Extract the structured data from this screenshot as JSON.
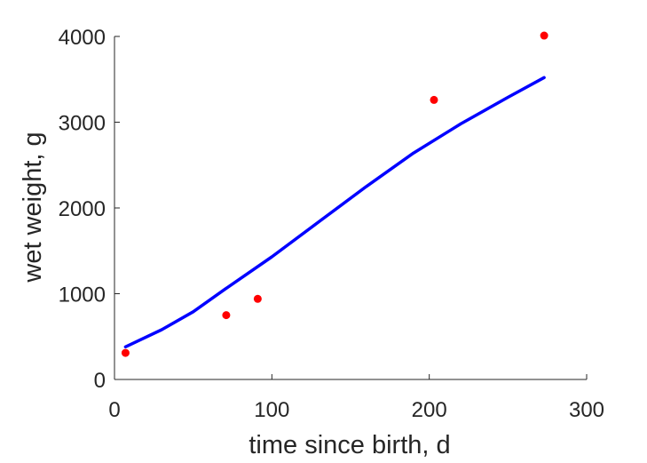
{
  "chart_data": {
    "type": "scatter",
    "xlabel": "time since birth, d",
    "ylabel": "wet weight, g",
    "xlim": [
      0,
      300
    ],
    "ylim": [
      0,
      4000
    ],
    "xticks": [
      0,
      100,
      200,
      300
    ],
    "yticks": [
      0,
      1000,
      2000,
      3000,
      4000
    ],
    "grid": false,
    "series": [
      {
        "kind": "scatter",
        "color": "#ff0000",
        "points": [
          {
            "x": 7,
            "y": 310
          },
          {
            "x": 71,
            "y": 750
          },
          {
            "x": 91,
            "y": 940
          },
          {
            "x": 203,
            "y": 3260
          },
          {
            "x": 273,
            "y": 4010
          }
        ]
      },
      {
        "kind": "line",
        "color": "#0000ff",
        "points": [
          {
            "x": 7,
            "y": 380
          },
          {
            "x": 30,
            "y": 580
          },
          {
            "x": 50,
            "y": 790
          },
          {
            "x": 70,
            "y": 1050
          },
          {
            "x": 100,
            "y": 1430
          },
          {
            "x": 130,
            "y": 1840
          },
          {
            "x": 160,
            "y": 2250
          },
          {
            "x": 190,
            "y": 2640
          },
          {
            "x": 220,
            "y": 2980
          },
          {
            "x": 250,
            "y": 3290
          },
          {
            "x": 273,
            "y": 3520
          }
        ]
      }
    ]
  }
}
